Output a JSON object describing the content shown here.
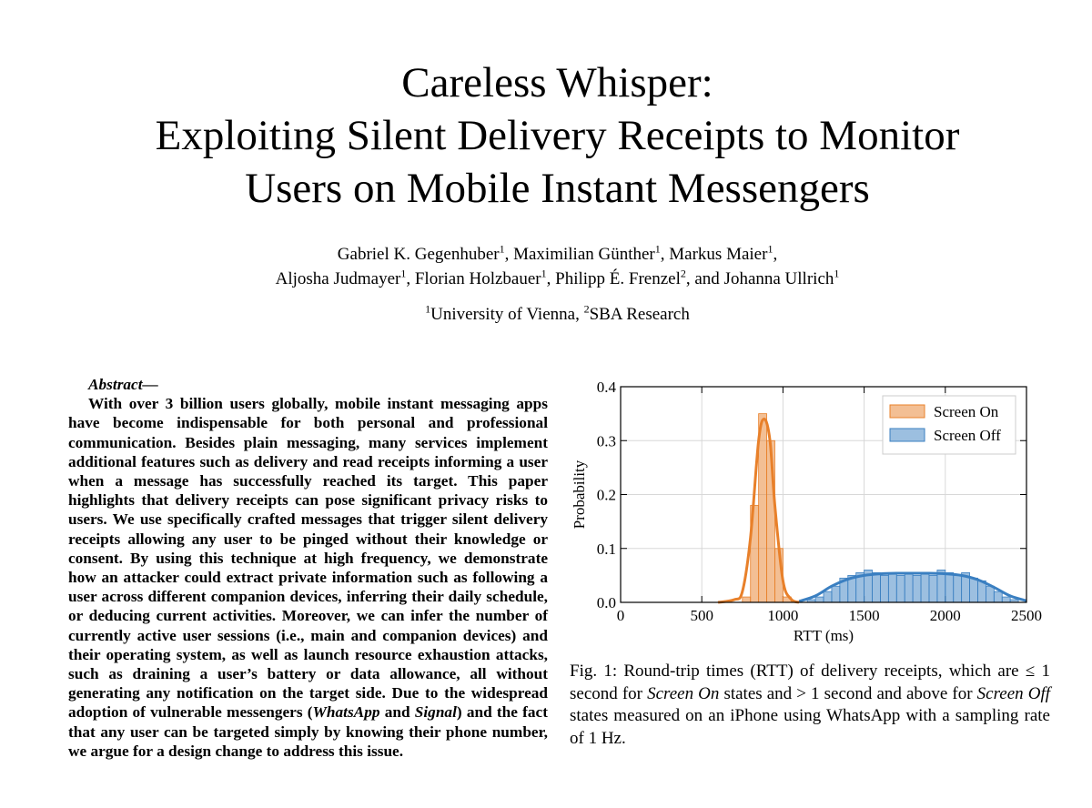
{
  "header": {
    "title_lines": [
      "Careless Whisper:",
      "Exploiting Silent Delivery Receipts to Monitor",
      "Users on Mobile Instant Messengers"
    ],
    "authors": [
      [
        {
          "name": "Gabriel K. Gegenhuber",
          "sup": "1",
          "sep": ", "
        },
        {
          "name": "Maximilian Günther",
          "sup": "1",
          "sep": ", "
        },
        {
          "name": "Markus Maier",
          "sup": "1",
          "sep": ","
        }
      ],
      [
        {
          "name": "Aljosha Judmayer",
          "sup": "1",
          "sep": ", "
        },
        {
          "name": "Florian Holzbauer",
          "sup": "1",
          "sep": ", "
        },
        {
          "name": "Philipp É. Frenzel",
          "sup": "2",
          "sep": ", and "
        },
        {
          "name": "Johanna Ullrich",
          "sup": "1"
        }
      ]
    ],
    "affiliations": [
      {
        "sup": "1",
        "name": "University of Vienna",
        "sep": ", "
      },
      {
        "sup": "2",
        "name": "SBA Research"
      }
    ]
  },
  "abstract": {
    "heading": "Abstract—",
    "segments": [
      "With over 3 billion users globally, mobile instant messaging apps have become indispensable for both personal and professional communication. Besides plain messaging, many services implement additional features such as delivery and read receipts informing a user when a message has successfully reached its target. This paper highlights that delivery receipts can pose significant privacy risks to users. We use specifically crafted messages that trigger silent delivery receipts allowing any user to be pinged without their knowledge or consent. By using this technique at high frequency, we demonstrate how an attacker could extract private information such as following a user across different companion devices, inferring their daily schedule, or deducing current activities. Moreover, we can infer the number of currently active user sessions (i.e., main and companion devices) and their operating system, as well as launch resource exhaustion attacks, such as draining a user’s battery or data allowance, all without generating any notification on the target side. Due to the widespread adoption of vulnerable messengers (",
      "WhatsApp",
      " and ",
      "Signal",
      ") and the fact that any user can be targeted simply by knowing their phone number, we argue for a design change to address this issue."
    ]
  },
  "chart_data": {
    "type": "histogram",
    "xlabel": "RTT (ms)",
    "ylabel": "Probability",
    "xlim": [
      0,
      2500
    ],
    "ylim": [
      0,
      0.4
    ],
    "xticks": [
      0,
      500,
      1000,
      1500,
      2000,
      2500
    ],
    "yticks": [
      {
        "value": 0,
        "label": "0.0"
      },
      0.1,
      0.2,
      0.3,
      0.4
    ],
    "grid": true,
    "legend": "upper-right",
    "series": [
      {
        "name": "Screen On",
        "color": "#e8802a",
        "bins": [
          750,
          800,
          850,
          900,
          950,
          1000,
          1050
        ],
        "values": [
          0.01,
          0.18,
          0.35,
          0.3,
          0.1,
          0.01
        ],
        "kde_x": [
          600,
          700,
          750,
          800,
          850,
          885,
          920,
          950,
          1000,
          1050,
          1100
        ],
        "kde_y": [
          0,
          0.005,
          0.02,
          0.12,
          0.3,
          0.34,
          0.3,
          0.18,
          0.04,
          0.006,
          0
        ]
      },
      {
        "name": "Screen Off",
        "color": "#3a7fc1",
        "bins": [
          1150,
          1200,
          1250,
          1300,
          1350,
          1400,
          1450,
          1500,
          1550,
          1600,
          1650,
          1700,
          1750,
          1800,
          1850,
          1900,
          1950,
          2000,
          2050,
          2100,
          2150,
          2200,
          2250,
          2300,
          2350,
          2400,
          2450
        ],
        "values": [
          0.005,
          0.01,
          0.02,
          0.03,
          0.045,
          0.05,
          0.055,
          0.06,
          0.055,
          0.05,
          0.055,
          0.05,
          0.055,
          0.05,
          0.055,
          0.05,
          0.06,
          0.055,
          0.05,
          0.055,
          0.045,
          0.04,
          0.03,
          0.02,
          0.01,
          0.005
        ],
        "kde_x": [
          1100,
          1200,
          1300,
          1400,
          1500,
          1600,
          1700,
          1800,
          1900,
          2000,
          2100,
          2200,
          2300,
          2400,
          2500
        ],
        "kde_y": [
          0.002,
          0.012,
          0.03,
          0.043,
          0.05,
          0.053,
          0.054,
          0.054,
          0.054,
          0.053,
          0.05,
          0.042,
          0.028,
          0.012,
          0.003
        ]
      }
    ]
  },
  "figure": {
    "caption": [
      "Fig. 1: Round-trip times (RTT) of delivery receipts, which are ≤ 1 second for ",
      "Screen On",
      " states and > 1 second and above for ",
      "Screen Off",
      " states measured on an iPhone using WhatsApp with a sampling rate of 1 Hz."
    ]
  }
}
